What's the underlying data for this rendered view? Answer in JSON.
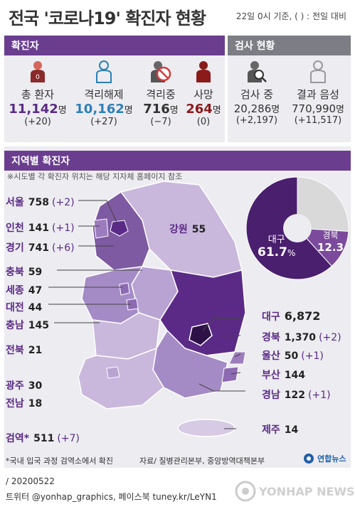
{
  "header": {
    "title": "전국 '코로나19' 확진자 현황",
    "note": "22일 0시 기준, ( ) : 전일 대비"
  },
  "confirmed": {
    "section_label": "확진자",
    "items": [
      {
        "label": "총 환자",
        "value": "11,142",
        "unit": "명",
        "change": "(+20)",
        "color": "#5b2a86",
        "icon": "person-icon"
      },
      {
        "label": "격리해제",
        "value": "10,162",
        "unit": "명",
        "change": "(+27)",
        "color": "#2c7fb8",
        "icon": "person-outline-icon"
      },
      {
        "label": "격리중",
        "value": "716",
        "unit": "명",
        "change": "(−7)",
        "color": "#333333",
        "icon": "person-prohibited-icon"
      },
      {
        "label": "사망",
        "value": "264",
        "unit": "명",
        "change": "(0)",
        "color": "#8b1a1a",
        "icon": "person-deceased-icon"
      }
    ]
  },
  "testing": {
    "section_label": "검사 현황",
    "items": [
      {
        "label": "검사 중",
        "value": "20,286",
        "unit": "명",
        "change": "(+2,197)",
        "icon": "person-search-icon"
      },
      {
        "label": "결과 음성",
        "value": "770,990",
        "unit": "명",
        "change": "(+11,517)",
        "icon": "person-outline-gray-icon"
      }
    ]
  },
  "regional": {
    "section_label": "지역별 확진자",
    "note": "※시도별 각 확진자 위치는 해당 지자체 홈페이지 참조",
    "airport_note": "*국내 입국 과정 검역소에서 확진",
    "source": "자료/ 질병관리본부, 중앙방역대책본부"
  },
  "chart_data": [
    {
      "type": "table",
      "title": "지역별 확진자",
      "columns": [
        "region",
        "count",
        "change"
      ],
      "rows": [
        [
          "서울",
          758,
          "(+2)"
        ],
        [
          "인천",
          141,
          "(+1)"
        ],
        [
          "경기",
          741,
          "(+6)"
        ],
        [
          "강원",
          55,
          ""
        ],
        [
          "충북",
          59,
          ""
        ],
        [
          "세종",
          47,
          ""
        ],
        [
          "대전",
          44,
          ""
        ],
        [
          "충남",
          145,
          ""
        ],
        [
          "전북",
          21,
          ""
        ],
        [
          "광주",
          30,
          ""
        ],
        [
          "전남",
          18,
          ""
        ],
        [
          "검역*",
          511,
          "(+7)"
        ],
        [
          "대구",
          6872,
          ""
        ],
        [
          "경북",
          1370,
          "(+2)"
        ],
        [
          "울산",
          50,
          "(+1)"
        ],
        [
          "부산",
          144,
          ""
        ],
        [
          "경남",
          122,
          "(+1)"
        ],
        [
          "제주",
          14,
          ""
        ]
      ]
    },
    {
      "type": "pie",
      "slices": [
        {
          "label": "대구",
          "value": 61.7,
          "display": "61.7",
          "unit": "%",
          "color": "#4a1f6e"
        },
        {
          "label": "경북",
          "value": 12.3,
          "display": "12.3",
          "unit": "",
          "color": "#7b4a9c"
        },
        {
          "label": "",
          "value": 26.0,
          "color": "#d9d9d9"
        }
      ]
    }
  ],
  "footer": {
    "date": "/ 20200522",
    "sns": "트위터 @yonhap_graphics, 페이스북 tuney.kr/LeYN1",
    "brand": "연합뉴스",
    "watermark": "YONHAP NEWS"
  },
  "colors": {
    "accent_purple": "#6a3d8f",
    "panel_gray": "#ececf1",
    "gray_header": "#7d7d85"
  }
}
